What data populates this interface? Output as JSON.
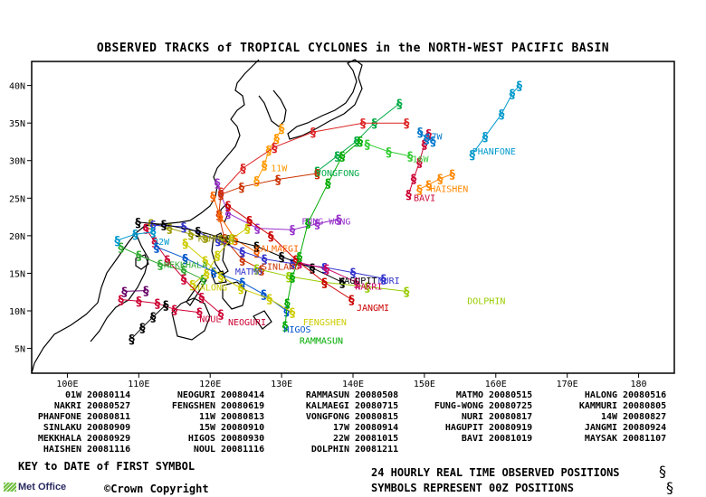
{
  "title": "OBSERVED TRACKS of TROPICAL CYCLONES in the NORTH-WEST PACIFIC BASIN",
  "axes": {
    "lon_ticks": [
      "100E",
      "110E",
      "120E",
      "130E",
      "140E",
      "150E",
      "160E",
      "170E",
      "180"
    ],
    "lat_ticks": [
      "5N",
      "10N",
      "15N",
      "20N",
      "25N",
      "30N",
      "35N",
      "40N"
    ]
  },
  "map_labels": [
    {
      "text": "PHANFONE",
      "color": "#0099cc",
      "lon": 156.7,
      "lat": 30.8
    },
    {
      "text": "17W",
      "color": "#0077cc",
      "lon": 150.2,
      "lat": 32.8
    },
    {
      "text": "16W",
      "color": "#33cc33",
      "lon": 148.3,
      "lat": 29.8
    },
    {
      "text": "HAISHEN",
      "color": "#ff8800",
      "lon": 150.8,
      "lat": 25.8
    },
    {
      "text": "BAVI",
      "color": "#cc0033",
      "lon": 148.5,
      "lat": 24.6
    },
    {
      "text": "11W",
      "color": "#ff9900",
      "lon": 128.5,
      "lat": 28.6
    },
    {
      "text": "VONGFONG",
      "color": "#00aa44",
      "lon": 134.8,
      "lat": 27.9
    },
    {
      "text": "FUNG-WONG",
      "color": "#9933cc",
      "lon": 132.8,
      "lat": 21.5
    },
    {
      "text": "KAMMURI",
      "color": "#999900",
      "lon": 118.3,
      "lat": 19.2
    },
    {
      "text": "KALMAEGI",
      "color": "#ff6600",
      "lon": 126.3,
      "lat": 17.9
    },
    {
      "text": "SINLAKU",
      "color": "#cc3300",
      "lon": 127.2,
      "lat": 15.5
    },
    {
      "text": "MATMO",
      "color": "#3333cc",
      "lon": 123.5,
      "lat": 14.8
    },
    {
      "text": "HAGUPIT",
      "color": "#000000",
      "lon": 138.0,
      "lat": 13.6
    },
    {
      "text": "NURI",
      "color": "#3333cc",
      "lon": 143.5,
      "lat": 13.6
    },
    {
      "text": "NAKRI",
      "color": "#cc0066",
      "lon": 140.3,
      "lat": 12.8
    },
    {
      "text": "DOLPHIN",
      "color": "#99cc00",
      "lon": 156.0,
      "lat": 10.9
    },
    {
      "text": "JANGMI",
      "color": "#cc0000",
      "lon": 140.5,
      "lat": 10.0
    },
    {
      "text": "MEKKHALA",
      "color": "#33aa33",
      "lon": 113.5,
      "lat": 15.7
    },
    {
      "text": "HALONG",
      "color": "#cccc00",
      "lon": 117.8,
      "lat": 12.7
    },
    {
      "text": "NOUL",
      "color": "#cc0033",
      "lon": 118.5,
      "lat": 8.5
    },
    {
      "text": "NEOGURI",
      "color": "#cc0033",
      "lon": 122.5,
      "lat": 8.1
    },
    {
      "text": "FENGSHEN",
      "color": "#cccc00",
      "lon": 133.0,
      "lat": 8.1
    },
    {
      "text": "HIGOS",
      "color": "#0055cc",
      "lon": 130.3,
      "lat": 7.1
    },
    {
      "text": "RAMMASUN",
      "color": "#00aa00",
      "lon": 132.5,
      "lat": 5.6
    },
    {
      "text": "22W",
      "color": "#0099cc",
      "lon": 112.0,
      "lat": 18.8
    }
  ],
  "legend": [
    {
      "name": "01W",
      "date": "20080114"
    },
    {
      "name": "NEOGURI",
      "date": "20080414"
    },
    {
      "name": "RAMMASUN",
      "date": "20080508"
    },
    {
      "name": "MATMO",
      "date": "20080515"
    },
    {
      "name": "HALONG",
      "date": "20080516"
    },
    {
      "name": "NAKRI",
      "date": "20080527"
    },
    {
      "name": "FENGSHEN",
      "date": "20080619"
    },
    {
      "name": "KALMAEGI",
      "date": "20080715"
    },
    {
      "name": "FUNG-WONG",
      "date": "20080725"
    },
    {
      "name": "KAMMURI",
      "date": "20080805"
    },
    {
      "name": "PHANFONE",
      "date": "20080811"
    },
    {
      "name": "11W",
      "date": "20080813"
    },
    {
      "name": "VONGFONG",
      "date": "20080815"
    },
    {
      "name": "NURI",
      "date": "20080817"
    },
    {
      "name": "14W",
      "date": "20080827"
    },
    {
      "name": "SINLAKU",
      "date": "20080909"
    },
    {
      "name": "15W",
      "date": "20080910"
    },
    {
      "name": "17W",
      "date": "20080914"
    },
    {
      "name": "HAGUPIT",
      "date": "20080919"
    },
    {
      "name": "JANGMI",
      "date": "20080924"
    },
    {
      "name": "MEKKHALA",
      "date": "20080929"
    },
    {
      "name": "HIGOS",
      "date": "20080930"
    },
    {
      "name": "22W",
      "date": "20081015"
    },
    {
      "name": "BAVI",
      "date": "20081019"
    },
    {
      "name": "MAYSAK",
      "date": "20081107"
    },
    {
      "name": "HAISHEN",
      "date": "20081116"
    },
    {
      "name": "NOUL",
      "date": "20081116"
    },
    {
      "name": "DOLPHIN",
      "date": "20081211"
    }
  ],
  "key_text": "KEY to DATE of FIRST SYMBOL",
  "obs_line1": "24 HOURLY REAL TIME OBSERVED POSITIONS",
  "obs_line2": "SYMBOLS REPRESENT 00Z POSITIONS",
  "copyright": "©Crown Copyright",
  "logo_text": "Met Office",
  "tracks": [
    {
      "color": "#0099cc",
      "pts": [
        [
          156.7,
          30.8
        ],
        [
          158.5,
          33.2
        ],
        [
          160.8,
          36.2
        ],
        [
          162.3,
          38.9
        ],
        [
          163.3,
          40.0
        ]
      ]
    },
    {
      "color": "#ff8800",
      "pts": [
        [
          149.3,
          26.2
        ],
        [
          150.6,
          26.8
        ],
        [
          152.2,
          27.6
        ],
        [
          153.9,
          28.2
        ]
      ]
    },
    {
      "color": "#cc0033",
      "pts": [
        [
          147.8,
          25.5
        ],
        [
          148.5,
          27.6
        ],
        [
          149.3,
          29.8
        ],
        [
          150.0,
          32.2
        ],
        [
          150.6,
          33.6
        ]
      ]
    },
    {
      "color": "#0077cc",
      "pts": [
        [
          149.4,
          33.8
        ],
        [
          150.3,
          32.9
        ],
        [
          151.2,
          32.6
        ]
      ]
    },
    {
      "color": "#33cc33",
      "pts": [
        [
          142.0,
          32.2
        ],
        [
          145.0,
          31.2
        ],
        [
          148.0,
          30.6
        ]
      ]
    },
    {
      "color": "#ff9900",
      "pts": [
        [
          126.5,
          27.3
        ],
        [
          127.6,
          29.4
        ],
        [
          128.2,
          31.4
        ],
        [
          129.3,
          33.0
        ],
        [
          130.0,
          34.3
        ]
      ]
    },
    {
      "color": "#00aa44",
      "pts": [
        [
          135.0,
          28.6
        ],
        [
          137.8,
          30.6
        ],
        [
          140.5,
          32.6
        ],
        [
          143.0,
          35.0
        ],
        [
          146.5,
          37.6
        ]
      ]
    },
    {
      "color": "#dd2222",
      "pts": [
        [
          121.5,
          25.8
        ],
        [
          124.6,
          29.0
        ],
        [
          129.0,
          31.8
        ],
        [
          134.4,
          33.8
        ],
        [
          141.4,
          35.0
        ],
        [
          147.5,
          35.0
        ]
      ]
    },
    {
      "color": "#9933cc",
      "pts": [
        [
          138.0,
          22.2
        ],
        [
          135.0,
          21.6
        ],
        [
          131.5,
          20.8
        ],
        [
          126.6,
          21.0
        ],
        [
          122.5,
          23.0
        ],
        [
          121.5,
          25.5
        ],
        [
          121.0,
          27.0
        ]
      ]
    },
    {
      "color": "#cc3300",
      "pts": [
        [
          127.2,
          15.5
        ],
        [
          124.5,
          16.8
        ],
        [
          122.0,
          19.6
        ],
        [
          121.2,
          22.8
        ],
        [
          121.5,
          25.5
        ],
        [
          124.4,
          26.5
        ],
        [
          129.5,
          27.5
        ],
        [
          135.0,
          28.3
        ]
      ]
    },
    {
      "color": "#ff6600",
      "pts": [
        [
          126.5,
          17.8
        ],
        [
          123.5,
          19.5
        ],
        [
          121.4,
          22.6
        ],
        [
          120.4,
          25.3
        ]
      ]
    },
    {
      "color": "#999900",
      "pts": [
        [
          121.5,
          19.5
        ],
        [
          119.3,
          19.8
        ],
        [
          117.3,
          20.2
        ],
        [
          114.3,
          21.0
        ],
        [
          111.7,
          21.6
        ]
      ]
    },
    {
      "color": "#3333cc",
      "pts": [
        [
          144.3,
          14.3
        ],
        [
          140.0,
          15.1
        ],
        [
          136.0,
          15.8
        ],
        [
          131.5,
          16.3
        ],
        [
          127.6,
          16.9
        ],
        [
          124.5,
          17.9
        ],
        [
          121.1,
          19.4
        ],
        [
          116.3,
          21.2
        ],
        [
          112.0,
          21.4
        ]
      ]
    },
    {
      "color": "#000000",
      "pts": [
        [
          138.5,
          13.8
        ],
        [
          134.3,
          15.7
        ],
        [
          130.0,
          17.2
        ],
        [
          126.5,
          18.6
        ],
        [
          122.5,
          19.5
        ],
        [
          118.3,
          20.6
        ],
        [
          113.5,
          21.5
        ],
        [
          109.9,
          21.8
        ]
      ]
    },
    {
      "color": "#cc0066",
      "pts": [
        [
          140.5,
          13.8
        ],
        [
          136.3,
          15.6
        ],
        [
          132.5,
          16.4
        ]
      ]
    },
    {
      "color": "#99cc00",
      "pts": [
        [
          147.5,
          12.6
        ],
        [
          142.0,
          13.2
        ],
        [
          136.0,
          13.8
        ],
        [
          131.0,
          14.6
        ],
        [
          126.5,
          15.6
        ]
      ]
    },
    {
      "color": "#cc0000",
      "pts": [
        [
          139.8,
          11.5
        ],
        [
          136.0,
          13.8
        ],
        [
          132.0,
          16.8
        ],
        [
          128.5,
          20.0
        ],
        [
          125.5,
          22.0
        ],
        [
          122.5,
          24.0
        ]
      ]
    },
    {
      "color": "#33aa33",
      "pts": [
        [
          119.0,
          14.2
        ],
        [
          116.3,
          15.4
        ],
        [
          113.0,
          16.2
        ],
        [
          110.0,
          17.4
        ],
        [
          107.5,
          18.5
        ]
      ]
    },
    {
      "color": "#cccc00",
      "pts": [
        [
          117.5,
          13.5
        ],
        [
          119.5,
          15.0
        ],
        [
          121.0,
          17.4
        ],
        [
          123.0,
          19.6
        ],
        [
          125.2,
          21.0
        ]
      ]
    },
    {
      "color": "#cc0033",
      "pts": [
        [
          118.5,
          9.8
        ],
        [
          115.0,
          10.2
        ],
        [
          112.6,
          11.0
        ],
        [
          110.0,
          11.3
        ],
        [
          107.5,
          11.5
        ]
      ]
    },
    {
      "color": "#cc0033",
      "pts": [
        [
          121.5,
          9.6
        ],
        [
          118.8,
          11.8
        ],
        [
          116.3,
          14.3
        ],
        [
          114.0,
          16.8
        ],
        [
          112.2,
          19.2
        ],
        [
          111.0,
          21.0
        ]
      ]
    },
    {
      "color": "#0055cc",
      "pts": [
        [
          130.7,
          10.0
        ],
        [
          127.5,
          12.2
        ],
        [
          124.5,
          13.8
        ],
        [
          120.5,
          15.2
        ],
        [
          116.5,
          17.0
        ],
        [
          112.5,
          18.5
        ]
      ]
    },
    {
      "color": "#00aa00",
      "pts": [
        [
          130.5,
          8.0
        ],
        [
          130.8,
          11.0
        ],
        [
          131.5,
          14.5
        ],
        [
          132.5,
          17.2
        ],
        [
          133.7,
          21.7
        ],
        [
          136.5,
          27.0
        ],
        [
          138.5,
          30.6
        ],
        [
          141.0,
          32.6
        ]
      ]
    },
    {
      "color": "#cccc00",
      "pts": [
        [
          131.5,
          9.8
        ],
        [
          128.3,
          11.6
        ],
        [
          124.3,
          13.0
        ],
        [
          121.5,
          14.6
        ],
        [
          119.3,
          16.7
        ],
        [
          116.5,
          19.0
        ]
      ]
    },
    {
      "color": "#0099cc",
      "pts": [
        [
          112.0,
          20.5
        ],
        [
          109.5,
          20.2
        ],
        [
          107.0,
          19.4
        ]
      ]
    },
    {
      "color": "#000000",
      "pts": [
        [
          113.8,
          10.8
        ],
        [
          112.0,
          9.2
        ],
        [
          110.5,
          7.8
        ],
        [
          109.0,
          6.3
        ]
      ]
    },
    {
      "color": "#660066",
      "pts": [
        [
          111.0,
          12.7
        ],
        [
          108.0,
          12.6
        ]
      ]
    }
  ]
}
